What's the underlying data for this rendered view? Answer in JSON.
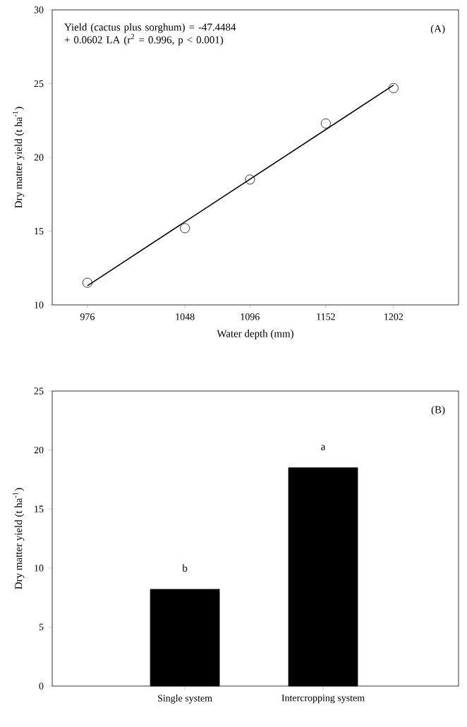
{
  "chart_data": [
    {
      "type": "scatter",
      "xlabel": "Water depth  (mm)",
      "ylabel": "Dry matter yield (t ha$^{-1}$)",
      "xlim": [
        950,
        1250
      ],
      "ylim": [
        10,
        30
      ],
      "xticks": [
        976,
        1048,
        1096,
        1152,
        1202
      ],
      "yticks": [
        10,
        15,
        20,
        25,
        30
      ],
      "grid": false,
      "marker": "circle",
      "x": [
        976,
        1048,
        1096,
        1152,
        1202
      ],
      "series": [
        {
          "type": "scatter",
          "color": "#000000",
          "values": [
            11.5,
            15.2,
            18.5,
            22.3,
            24.7
          ]
        },
        {
          "type": "line",
          "color": "#000000",
          "marker": "none",
          "x": [
            976,
            1202
          ],
          "values": [
            11.3,
            24.9
          ]
        }
      ],
      "annotations": [
        "Yield (cactus plus sorghum) = -47.4484 + 0.0602 LA (r$^{2}$ = 0.996, p < 0.001)",
        "(A)"
      ]
    },
    {
      "type": "bar",
      "ylabel": "Dry matter yield (t ha$^{-1}$)",
      "categories": [
        "Single system",
        "Intercropping system"
      ],
      "values": [
        8.2,
        18.5
      ],
      "color": "#000000",
      "ylim": [
        0,
        25
      ],
      "yticks": [
        0,
        5,
        10,
        15,
        20,
        25
      ],
      "grid": false,
      "annotations": [
        "b",
        "a",
        "(B)"
      ]
    }
  ]
}
